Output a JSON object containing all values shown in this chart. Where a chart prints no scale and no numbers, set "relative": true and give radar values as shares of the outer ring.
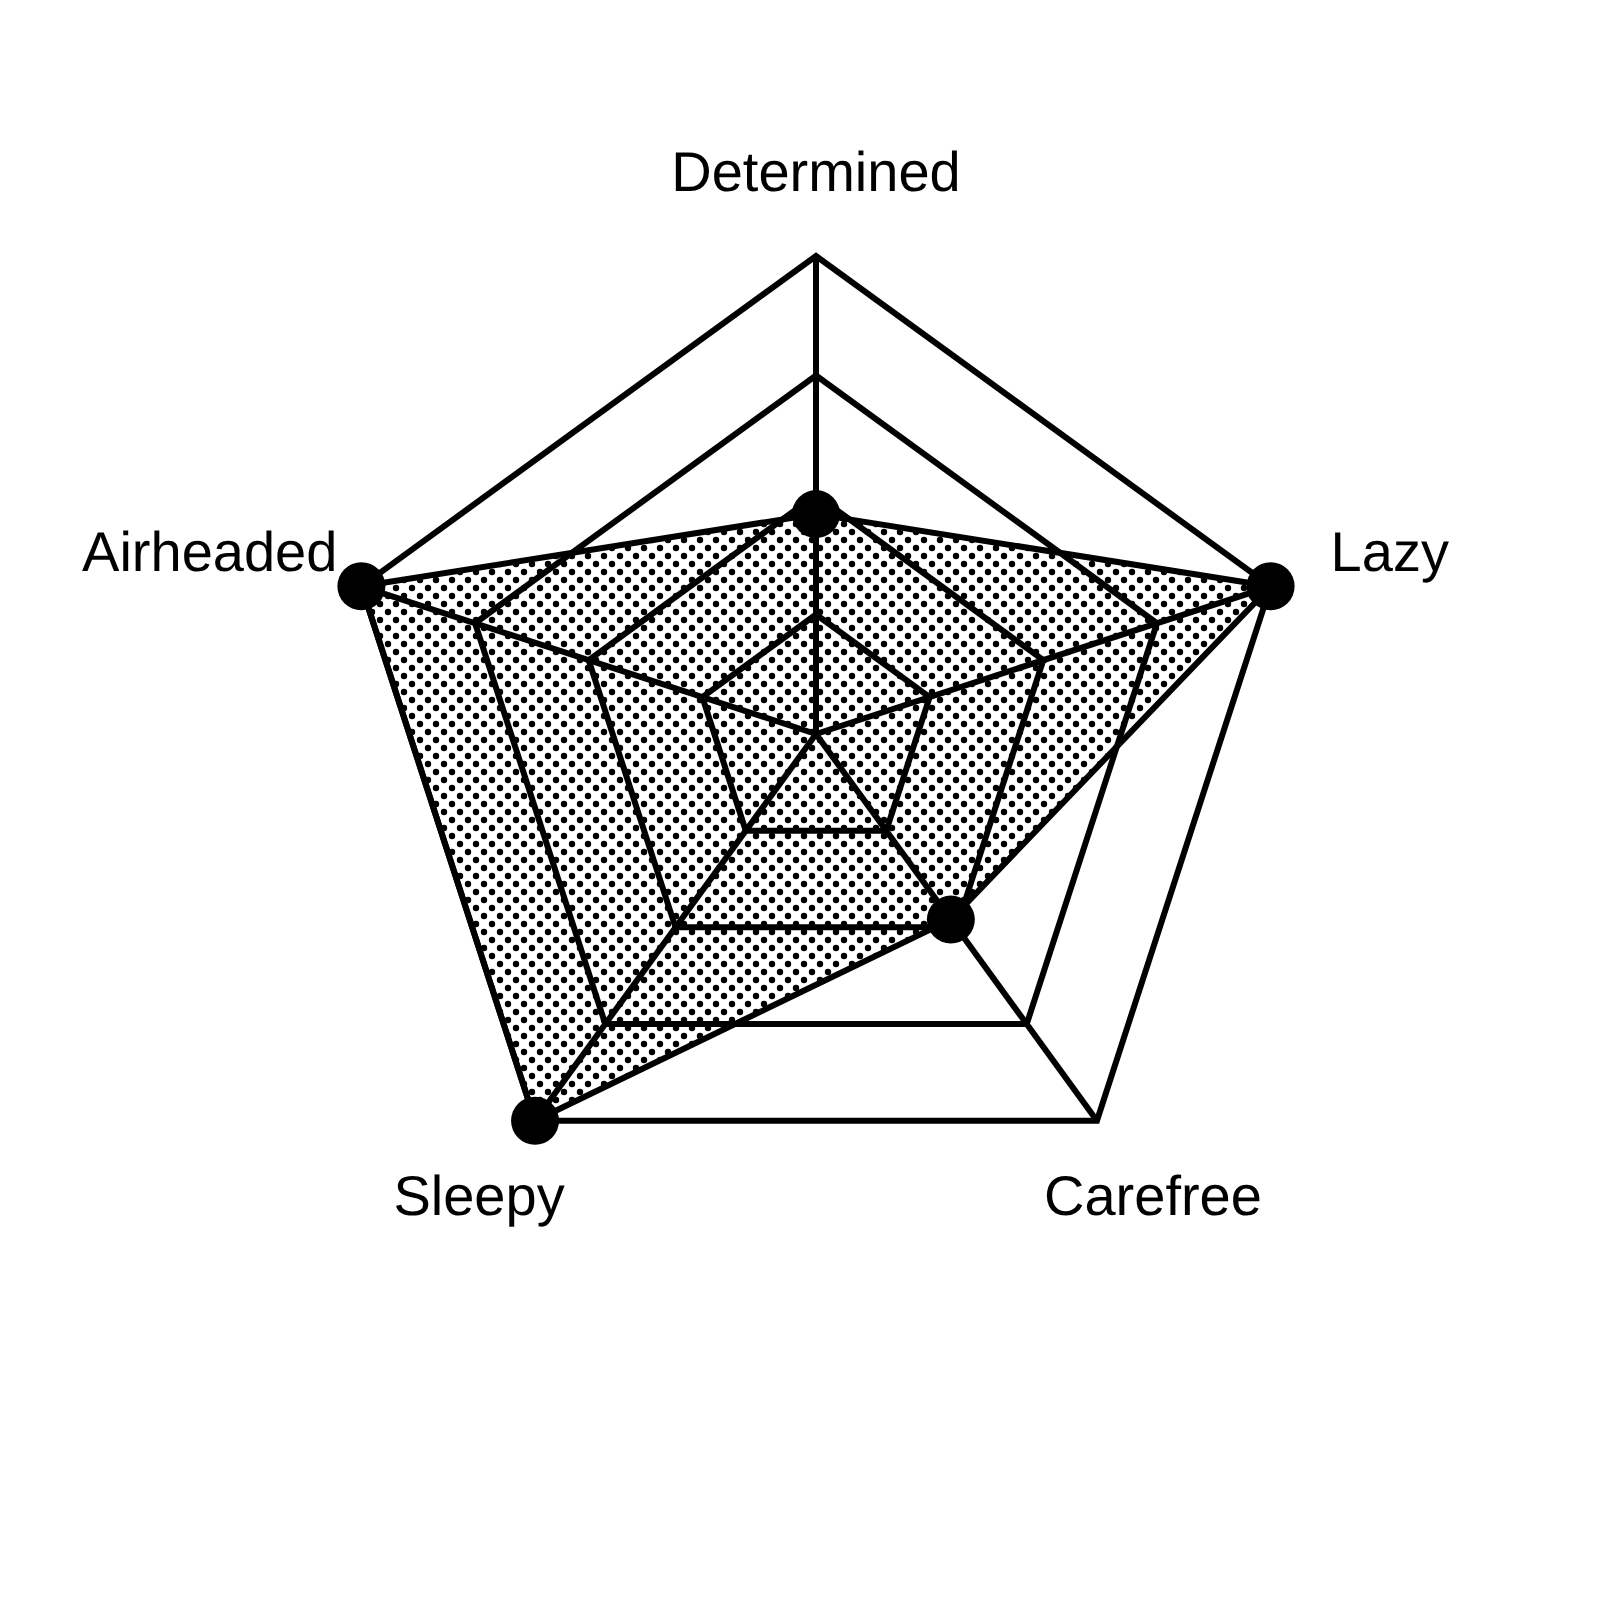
{
  "chart_data": {
    "type": "radar",
    "relative": true,
    "categories": [
      "Determined",
      "Lazy",
      "Carefree",
      "Sleepy",
      "Airheaded"
    ],
    "series": [
      {
        "color": "#000000",
        "values": [
          0.46,
          1,
          0.48,
          1,
          1
        ]
      }
    ],
    "grid": true,
    "marker": "circle"
  }
}
